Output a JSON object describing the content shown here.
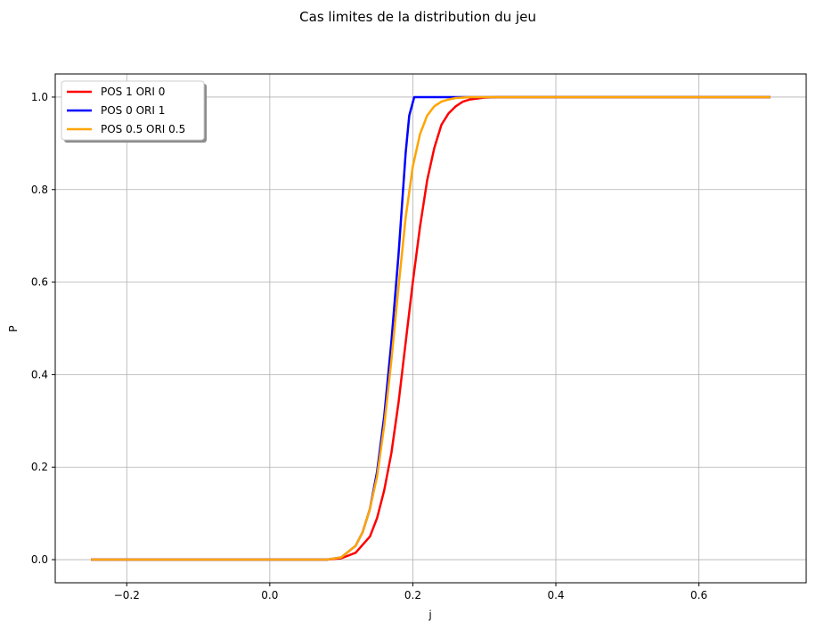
{
  "chart_data": {
    "type": "line",
    "title": "Cas limites de la distribution du jeu",
    "xlabel": "j",
    "ylabel": "P",
    "xlim": [
      -0.3,
      0.75
    ],
    "ylim": [
      -0.05,
      1.05
    ],
    "xticks": [
      -0.2,
      0.0,
      0.2,
      0.4,
      0.6
    ],
    "xtick_labels": [
      "−0.2",
      "0.0",
      "0.2",
      "0.4",
      "0.6"
    ],
    "yticks": [
      0.0,
      0.2,
      0.4,
      0.6,
      0.8,
      1.0
    ],
    "ytick_labels": [
      "0.0",
      "0.2",
      "0.4",
      "0.6",
      "0.8",
      "1.0"
    ],
    "grid": true,
    "legend_placement": "top-left",
    "series": [
      {
        "name": "POS 1 ORI 0",
        "color": "#ff0000",
        "x": [
          -0.25,
          0.0,
          0.08,
          0.1,
          0.12,
          0.14,
          0.15,
          0.16,
          0.17,
          0.18,
          0.19,
          0.2,
          0.21,
          0.22,
          0.23,
          0.24,
          0.25,
          0.26,
          0.27,
          0.28,
          0.3,
          0.32,
          0.35,
          0.4,
          0.7
        ],
        "y": [
          0.0,
          0.0,
          0.0,
          0.003,
          0.015,
          0.05,
          0.09,
          0.15,
          0.23,
          0.34,
          0.47,
          0.6,
          0.72,
          0.82,
          0.89,
          0.94,
          0.965,
          0.98,
          0.99,
          0.995,
          0.999,
          1.0,
          1.0,
          1.0,
          1.0
        ]
      },
      {
        "name": "POS 0 ORI 1",
        "color": "#0000ff",
        "x": [
          -0.25,
          0.0,
          0.08,
          0.1,
          0.12,
          0.13,
          0.14,
          0.15,
          0.16,
          0.17,
          0.18,
          0.19,
          0.195,
          0.202,
          0.25,
          0.7
        ],
        "y": [
          0.0,
          0.0,
          0.0,
          0.005,
          0.03,
          0.06,
          0.11,
          0.19,
          0.31,
          0.47,
          0.66,
          0.88,
          0.96,
          1.0,
          1.0,
          1.0
        ]
      },
      {
        "name": "POS 0.5 ORI 0.5",
        "color": "#ffa500",
        "x": [
          -0.25,
          0.0,
          0.08,
          0.1,
          0.12,
          0.13,
          0.14,
          0.15,
          0.16,
          0.17,
          0.18,
          0.19,
          0.2,
          0.21,
          0.22,
          0.23,
          0.24,
          0.25,
          0.26,
          0.28,
          0.3,
          0.7
        ],
        "y": [
          0.0,
          0.0,
          0.0,
          0.005,
          0.03,
          0.06,
          0.11,
          0.18,
          0.29,
          0.43,
          0.59,
          0.74,
          0.85,
          0.92,
          0.96,
          0.98,
          0.99,
          0.995,
          0.998,
          1.0,
          1.0,
          1.0
        ]
      }
    ]
  }
}
